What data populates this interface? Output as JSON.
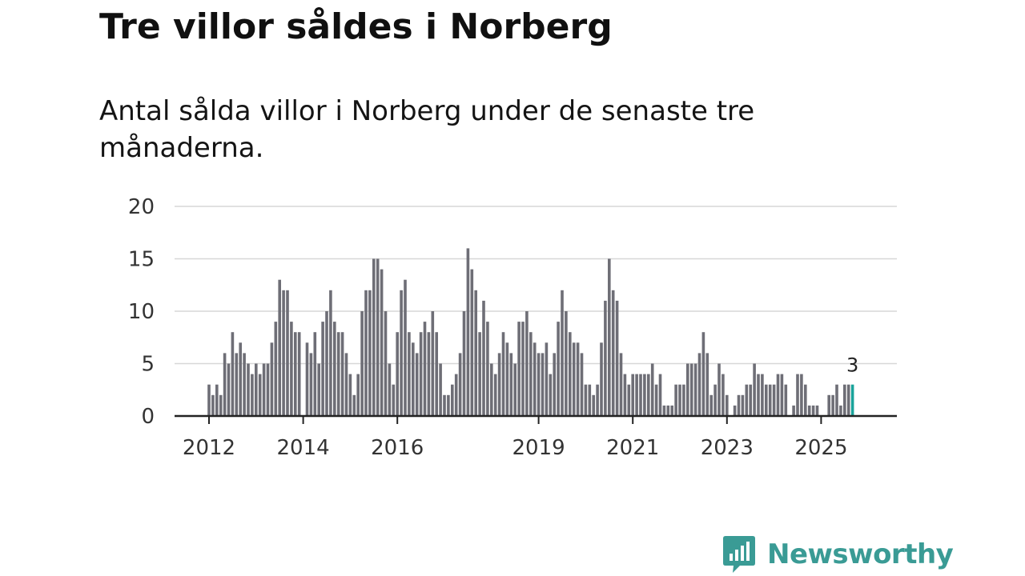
{
  "title": "Tre villor såldes i Norberg",
  "subtitle": "Antal sålda villor i Norberg under de senaste tre månaderna.",
  "brand": {
    "name": "Newsworthy",
    "color": "#3a9b95"
  },
  "colors": {
    "bar": "#6e6e76",
    "highlight": "#1aa39a",
    "grid": "#d7d7d7",
    "axis": "#222222"
  },
  "chart_data": {
    "type": "bar",
    "title": "Tre villor såldes i Norberg",
    "xlabel": "",
    "ylabel": "",
    "ylim": [
      0,
      20
    ],
    "yticks": [
      0,
      5,
      10,
      15,
      20
    ],
    "start": "2012-01",
    "frequency": "monthly",
    "x_tick_labels": [
      {
        "label": "2012",
        "index": 0
      },
      {
        "label": "2014",
        "index": 24
      },
      {
        "label": "2016",
        "index": 48
      },
      {
        "label": "2019",
        "index": 84
      },
      {
        "label": "2021",
        "index": 108
      },
      {
        "label": "2023",
        "index": 132
      },
      {
        "label": "2025",
        "index": 156
      }
    ],
    "values": [
      3,
      2,
      3,
      2,
      6,
      5,
      8,
      6,
      7,
      6,
      5,
      4,
      5,
      4,
      5,
      5,
      7,
      9,
      13,
      12,
      12,
      9,
      8,
      8,
      0,
      7,
      6,
      8,
      5,
      9,
      10,
      12,
      9,
      8,
      8,
      6,
      4,
      2,
      4,
      10,
      12,
      12,
      15,
      15,
      14,
      10,
      5,
      3,
      8,
      12,
      13,
      8,
      7,
      6,
      8,
      9,
      8,
      10,
      8,
      5,
      2,
      2,
      3,
      4,
      6,
      10,
      16,
      14,
      12,
      8,
      11,
      9,
      5,
      4,
      6,
      8,
      7,
      6,
      5,
      9,
      9,
      10,
      8,
      7,
      6,
      6,
      7,
      4,
      6,
      9,
      12,
      10,
      8,
      7,
      7,
      6,
      3,
      3,
      2,
      3,
      7,
      11,
      15,
      12,
      11,
      6,
      4,
      3,
      4,
      4,
      4,
      4,
      4,
      5,
      3,
      4,
      1,
      1,
      1,
      3,
      3,
      3,
      5,
      5,
      5,
      6,
      8,
      6,
      2,
      3,
      5,
      4,
      2,
      0,
      1,
      2,
      2,
      3,
      3,
      5,
      4,
      4,
      3,
      3,
      3,
      4,
      4,
      3,
      0,
      1,
      4,
      4,
      3,
      1,
      1,
      1,
      0,
      0,
      2,
      2,
      3,
      1,
      3,
      3,
      3
    ],
    "highlight_last": true,
    "last_value_label": "3"
  }
}
